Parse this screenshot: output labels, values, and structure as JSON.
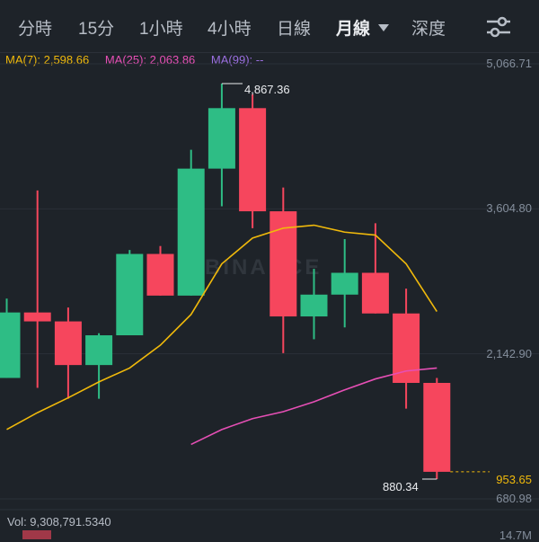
{
  "tabs": [
    {
      "label": "分時"
    },
    {
      "label": "15分"
    },
    {
      "label": "1小時"
    },
    {
      "label": "4小時"
    },
    {
      "label": "日線"
    },
    {
      "label": "月線",
      "active": true
    },
    {
      "label": "深度"
    }
  ],
  "settings_icon": "sliders-icon",
  "indicators": {
    "ma7": "MA(7): 2,598.66",
    "ma25": "MA(25): 2,063.86",
    "ma99": "MA(99): --"
  },
  "price_axis": {
    "top": "5,066.71",
    "mid1": "3,604.80",
    "mid2": "2,142.90",
    "current": "953.65",
    "bottom": "680.98"
  },
  "annotations": {
    "high": "4,867.36",
    "low": "880.34"
  },
  "watermark": "BINANCE",
  "volume": {
    "label": "Vol: 9,308,791.5340",
    "axis": "14.7M"
  },
  "colors": {
    "up": "#2ebd85",
    "down": "#f6465d",
    "ma7": "#f0b90b",
    "ma25": "#e64fb5",
    "ma99": "#9b6fe0",
    "background": "#1e2329"
  },
  "chart_data": {
    "type": "candlestick",
    "price_ticks": [
      5066.71,
      3604.8,
      2142.9,
      680.98
    ],
    "current_price": 953.65,
    "candles": [
      {
        "open": 1900,
        "close": 2560,
        "high": 2700,
        "low": 1900,
        "dir": "up"
      },
      {
        "open": 2560,
        "close": 2470,
        "high": 3790,
        "low": 1800,
        "dir": "down"
      },
      {
        "open": 2470,
        "close": 2030,
        "high": 2610,
        "low": 1690,
        "dir": "down"
      },
      {
        "open": 2030,
        "close": 2330,
        "high": 2350,
        "low": 1690,
        "dir": "up"
      },
      {
        "open": 2330,
        "close": 3150,
        "high": 3190,
        "low": 2330,
        "dir": "up"
      },
      {
        "open": 3150,
        "close": 2730,
        "high": 3230,
        "low": 2730,
        "dir": "down"
      },
      {
        "open": 2730,
        "close": 4010,
        "high": 4200,
        "low": 2730,
        "dir": "up"
      },
      {
        "open": 4010,
        "close": 4620,
        "high": 4867.36,
        "low": 3630,
        "dir": "up"
      },
      {
        "open": 4620,
        "close": 3580,
        "high": 4760,
        "low": 3410,
        "dir": "down"
      },
      {
        "open": 3580,
        "close": 2520,
        "high": 3820,
        "low": 2150,
        "dir": "down"
      },
      {
        "open": 2520,
        "close": 2740,
        "high": 3000,
        "low": 2290,
        "dir": "up"
      },
      {
        "open": 2740,
        "close": 2960,
        "high": 3300,
        "low": 2410,
        "dir": "up"
      },
      {
        "open": 2960,
        "close": 2550,
        "high": 3460,
        "low": 2550,
        "dir": "down"
      },
      {
        "open": 2550,
        "close": 1850,
        "high": 2800,
        "low": 1590,
        "dir": "down"
      },
      {
        "open": 1850,
        "close": 953.65,
        "high": 1900,
        "low": 880.34,
        "dir": "down"
      }
    ],
    "ma7": [
      1380,
      1550,
      1700,
      1860,
      2000,
      2230,
      2540,
      3050,
      3310,
      3410,
      3440,
      3370,
      3340,
      3050,
      2570
    ],
    "ma25": [
      null,
      null,
      null,
      null,
      null,
      null,
      1230,
      1380,
      1490,
      1560,
      1660,
      1780,
      1890,
      1970,
      2000
    ],
    "volume_bars": [
      {
        "dir": "down",
        "value": 0.05
      }
    ]
  }
}
